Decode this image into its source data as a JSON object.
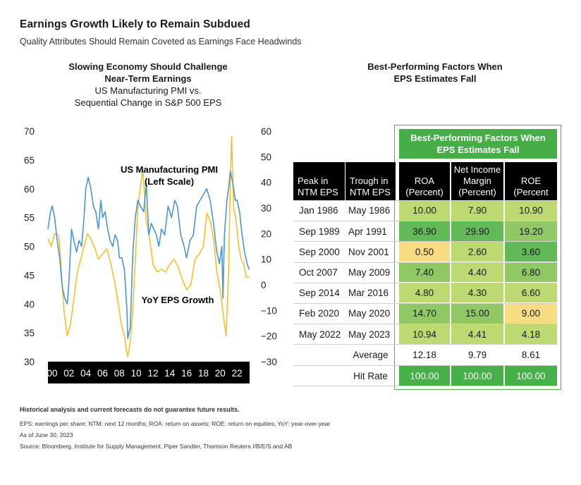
{
  "header": {
    "title": "Earnings Growth Likely to Remain Subdued",
    "subtitle": "Quality Attributes Should Remain Coveted as Earnings Face Headwinds"
  },
  "left_panel": {
    "title_bold_1": "Slowing Economy Should Challenge",
    "title_bold_2": "Near-Term Earnings",
    "subtitle_1": "US Manufacturing PMI vs.",
    "subtitle_2": "Sequential Change in S&P 500 EPS"
  },
  "right_panel": {
    "title_1": "Best-Performing Factors When",
    "title_2": "EPS Estimates Fall"
  },
  "colors": {
    "pmi": "#4a96d2",
    "eps": "#f5c02c",
    "axis_band": "#000000"
  },
  "chart_data": {
    "type": "line",
    "x_tick_labels": [
      "00",
      "02",
      "04",
      "06",
      "08",
      "10",
      "12",
      "14",
      "16",
      "18",
      "20",
      "22"
    ],
    "x_range": [
      1999.5,
      2023.5
    ],
    "left_axis": {
      "ticks": [
        "70",
        "65",
        "60",
        "55",
        "50",
        "45",
        "40",
        "35",
        "30"
      ],
      "range": [
        30,
        70
      ]
    },
    "right_axis": {
      "ticks": [
        "60",
        "50",
        "40",
        "30",
        "20",
        "10",
        "0",
        "−10",
        "−20",
        "−30"
      ],
      "range": [
        -30,
        60
      ]
    },
    "annotations": {
      "pmi_1": "US Manufacturing PMI",
      "pmi_2": "(Left Scale)",
      "eps": "YoY EPS Growth"
    },
    "series": [
      {
        "name": "US Manufacturing PMI",
        "axis": "left",
        "x": [
          1999.5,
          1999.8,
          2000.0,
          2000.3,
          2000.6,
          2000.9,
          2001.2,
          2001.5,
          2001.8,
          2002.0,
          2002.3,
          2002.6,
          2002.9,
          2003.2,
          2003.5,
          2003.8,
          2004.0,
          2004.3,
          2004.6,
          2004.9,
          2005.2,
          2005.5,
          2005.8,
          2006.0,
          2006.3,
          2006.6,
          2006.9,
          2007.2,
          2007.5,
          2007.8,
          2008.0,
          2008.3,
          2008.6,
          2008.9,
          2009.0,
          2009.3,
          2009.6,
          2009.9,
          2010.2,
          2010.5,
          2010.9,
          2011.2,
          2011.5,
          2011.8,
          2012.1,
          2012.4,
          2012.7,
          2013.0,
          2013.4,
          2013.8,
          2014.2,
          2014.6,
          2014.9,
          2015.3,
          2015.7,
          2016.0,
          2016.4,
          2016.8,
          2017.2,
          2017.6,
          2018.0,
          2018.4,
          2018.8,
          2019.2,
          2019.6,
          2019.9,
          2020.2,
          2020.33,
          2020.5,
          2020.8,
          2021.0,
          2021.2,
          2021.5,
          2021.8,
          2022.0,
          2022.3,
          2022.6,
          2022.9,
          2023.2,
          2023.45
        ],
        "values": [
          53,
          56,
          57,
          55,
          51,
          48,
          43,
          41,
          40,
          44,
          53,
          51,
          49,
          51,
          50,
          55,
          60,
          62,
          60,
          57,
          56,
          53,
          58,
          55,
          56,
          53,
          51,
          50,
          52,
          51,
          48,
          48,
          46,
          39,
          34,
          36,
          49,
          55,
          58,
          57,
          56,
          61,
          52,
          54,
          53,
          52,
          50,
          53,
          52,
          57,
          55,
          58,
          57,
          52,
          50,
          48,
          51,
          52,
          57,
          58,
          59,
          60,
          58,
          54,
          49,
          47,
          50,
          41,
          52,
          58,
          60,
          63,
          61,
          58,
          58,
          56,
          52,
          49,
          47,
          46
        ]
      },
      {
        "name": "YoY EPS Growth",
        "axis": "right",
        "x": [
          1999.5,
          1999.9,
          2000.3,
          2000.8,
          2001.0,
          2001.4,
          2001.8,
          2002.2,
          2002.6,
          2003.0,
          2003.4,
          2003.8,
          2004.2,
          2004.6,
          2005.0,
          2005.5,
          2006.0,
          2006.5,
          2007.0,
          2007.5,
          2007.9,
          2008.2,
          2008.6,
          2008.8,
          2009.0,
          2009.3,
          2009.6,
          2009.9,
          2010.2,
          2010.5,
          2010.8,
          2011.2,
          2011.6,
          2012.0,
          2012.5,
          2013.0,
          2013.5,
          2014.0,
          2014.5,
          2015.0,
          2015.5,
          2016.0,
          2016.5,
          2017.0,
          2017.5,
          2018.0,
          2018.4,
          2018.8,
          2019.2,
          2019.6,
          2020.0,
          2020.3,
          2020.5,
          2020.7,
          2021.0,
          2021.2,
          2021.35,
          2021.6,
          2021.9,
          2022.2,
          2022.5,
          2022.8,
          2023.1,
          2023.45
        ],
        "values": [
          18,
          15,
          20,
          19,
          10,
          -10,
          -20,
          -15,
          -5,
          5,
          10,
          15,
          20,
          18,
          15,
          10,
          12,
          14,
          8,
          0,
          -8,
          -15,
          -20,
          -25,
          -28,
          -22,
          -10,
          10,
          30,
          38,
          45,
          25,
          18,
          8,
          5,
          6,
          5,
          8,
          10,
          7,
          2,
          -2,
          0,
          10,
          12,
          15,
          28,
          25,
          18,
          5,
          -2,
          -10,
          -15,
          -20,
          5,
          40,
          58,
          30,
          25,
          15,
          10,
          8,
          3,
          3
        ]
      }
    ]
  },
  "factor_table": {
    "box_title_1": "Best-Performing Factors When",
    "box_title_2": "EPS Estimates Fall",
    "headers": {
      "peak": [
        "Peak in",
        "NTM EPS"
      ],
      "trough": [
        "Trough in",
        "NTM EPS"
      ],
      "roa": [
        "ROA",
        "(Percent)"
      ],
      "nim": [
        "Net Income",
        "Margin",
        "(Percent)"
      ],
      "roe": [
        "ROE",
        "(Percent"
      ]
    },
    "rows": [
      {
        "peak": "Jan 1986",
        "trough": "May 1986",
        "roa": "10.00",
        "nim": "7.90",
        "roe": "10.90"
      },
      {
        "peak": "Sep 1989",
        "trough": "Apr 1991",
        "roa": "36.90",
        "nim": "29.90",
        "roe": "19.20"
      },
      {
        "peak": "Sep 2000",
        "trough": "Nov 2001",
        "roa": "0.50",
        "nim": "2.60",
        "roe": "3.60"
      },
      {
        "peak": "Oct 2007",
        "trough": "May 2009",
        "roa": "7.40",
        "nim": "4.40",
        "roe": "6.80"
      },
      {
        "peak": "Sep 2014",
        "trough": "Mar 2016",
        "roa": "4.80",
        "nim": "4.30",
        "roe": "6.60"
      },
      {
        "peak": "Feb 2020",
        "trough": "May 2020",
        "roa": "14.70",
        "nim": "15.00",
        "roe": "9.00"
      },
      {
        "peak": "May 2022",
        "trough": "May 2023",
        "roa": "10.94",
        "nim": "4.41",
        "roe": "4.18"
      }
    ],
    "average": {
      "label": "Average",
      "roa": "12.18",
      "nim": "9.79",
      "roe": "8.61"
    },
    "hit_rate": {
      "label": "Hit Rate",
      "roa": "100.00",
      "nim": "100.00",
      "roe": "100.00"
    }
  },
  "footer": {
    "disclaimer": "Historical analysis and current forecasts do not guarantee future results.",
    "defs": "EPS: earnings per share; NTM: next 12 months; ROA: return on assets; ROE: return on equities; YoY: year-over-year",
    "asof": "As of June 30, 2023",
    "source": "Source: Bloomberg, Institute for Supply Management, Piper Sandler, Thomson Reuters I/B/E/S and AB"
  }
}
